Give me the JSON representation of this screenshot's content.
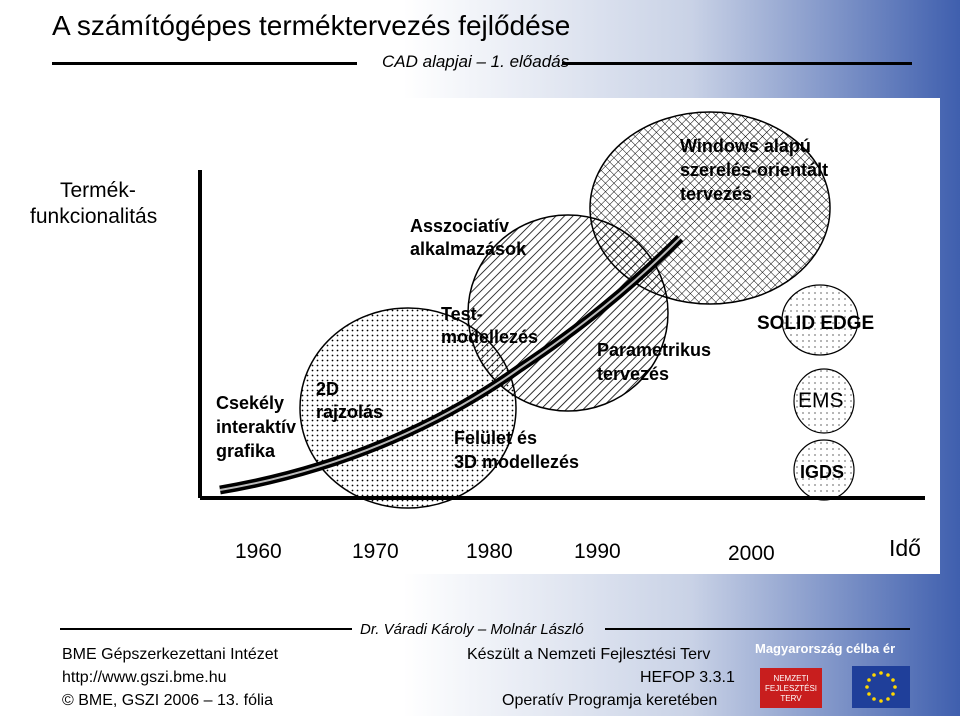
{
  "header": {
    "title": "A számítógépes terméktervezés fejlődése",
    "subtitle": "CAD alapjai – 1. előadás"
  },
  "diagram": {
    "y_axis_label_line1": "Termék-",
    "y_axis_label_line2": "funkcionalitás",
    "x_axis_label": "Idő",
    "years": [
      "1960",
      "1970",
      "1980",
      "1990",
      "2000"
    ],
    "stages": {
      "low_line1": "Csekély",
      "low_line2": "interaktív",
      "low_line3": "grafika",
      "drafting_line1": "2D",
      "drafting_line2": "rajzolás",
      "solid_line1": "Test-",
      "solid_line2": "modellezés",
      "associative_line1": "Asszociatív",
      "associative_line2": "alkalmazások",
      "surface_line1": "Felület és",
      "surface_line2": "3D modellezés",
      "parametric_line1": "Parametrikus",
      "parametric_line2": "tervezés",
      "windows_line1": "Windows alapú",
      "windows_line2": "szerelés-orientált",
      "windows_line3": "tervezés"
    },
    "products": [
      "SOLID EDGE",
      "EMS",
      "IGDS"
    ]
  },
  "footer": {
    "authors": "Dr. Váradi Károly – Molnár László",
    "institute": "BME Gépszerkezettani Intézet",
    "url": "http://www.gszi.bme.hu",
    "copyright": "©  BME, GSZI 2006 – 13. fólia",
    "made_line1": "Készült a Nemzeti Fejlesztési Terv",
    "made_line2": "HEFOP 3.3.1",
    "made_line3": "Operatív Programja keretében",
    "banner": "Magyarország célba ér",
    "logo_text": "NEMZETI FEJLESZTÉSI TERV"
  }
}
